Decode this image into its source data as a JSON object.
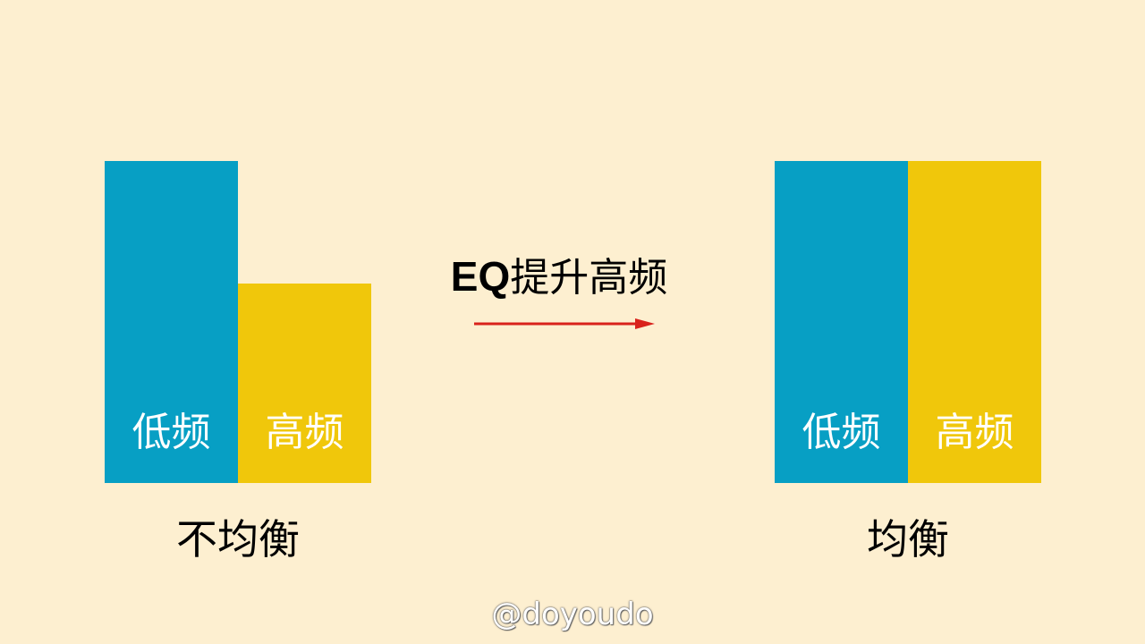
{
  "colors": {
    "background": "#fdefd0",
    "low_bar": "#079fc4",
    "high_bar": "#f0c70b",
    "arrow": "#d9221b",
    "text": "#000000",
    "bar_text": "#ffffff"
  },
  "left_group": {
    "low_label": "低频",
    "high_label": "高频",
    "caption": "不均衡",
    "low_level": 1.0,
    "high_level": 0.62
  },
  "right_group": {
    "low_label": "低频",
    "high_label": "高频",
    "caption": "均衡",
    "low_level": 1.0,
    "high_level": 1.0
  },
  "center": {
    "eq_bold": "EQ",
    "eq_text": "提升高频",
    "arrow_icon": "right-arrow-icon"
  },
  "watermark": "@doyoudo"
}
